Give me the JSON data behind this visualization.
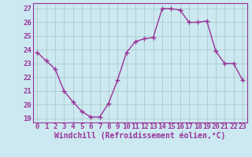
{
  "x": [
    0,
    1,
    2,
    3,
    4,
    5,
    6,
    7,
    8,
    9,
    10,
    11,
    12,
    13,
    14,
    15,
    16,
    17,
    18,
    19,
    20,
    21,
    22,
    23
  ],
  "y": [
    23.8,
    23.2,
    22.6,
    21.0,
    20.2,
    19.5,
    19.1,
    19.1,
    20.1,
    21.8,
    23.8,
    24.6,
    24.8,
    24.9,
    27.0,
    27.0,
    26.9,
    26.0,
    26.0,
    26.1,
    23.9,
    23.0,
    23.0,
    21.8
  ],
  "line_color": "#993399",
  "marker": "D",
  "marker_size": 2.5,
  "bg_color": "#cce8f0",
  "grid_color": "#aacccc",
  "xlabel": "Windchill (Refroidissement éolien,°C)",
  "xlabel_color": "#993399",
  "tick_color": "#993399",
  "ylim": [
    18.7,
    27.4
  ],
  "xlim": [
    -0.5,
    23.5
  ],
  "yticks": [
    19,
    20,
    21,
    22,
    23,
    24,
    25,
    26,
    27
  ],
  "xticks": [
    0,
    1,
    2,
    3,
    4,
    5,
    6,
    7,
    8,
    9,
    10,
    11,
    12,
    13,
    14,
    15,
    16,
    17,
    18,
    19,
    20,
    21,
    22,
    23
  ],
  "font_size": 6.5,
  "xlabel_font_size": 7.0,
  "line_width": 1.0
}
